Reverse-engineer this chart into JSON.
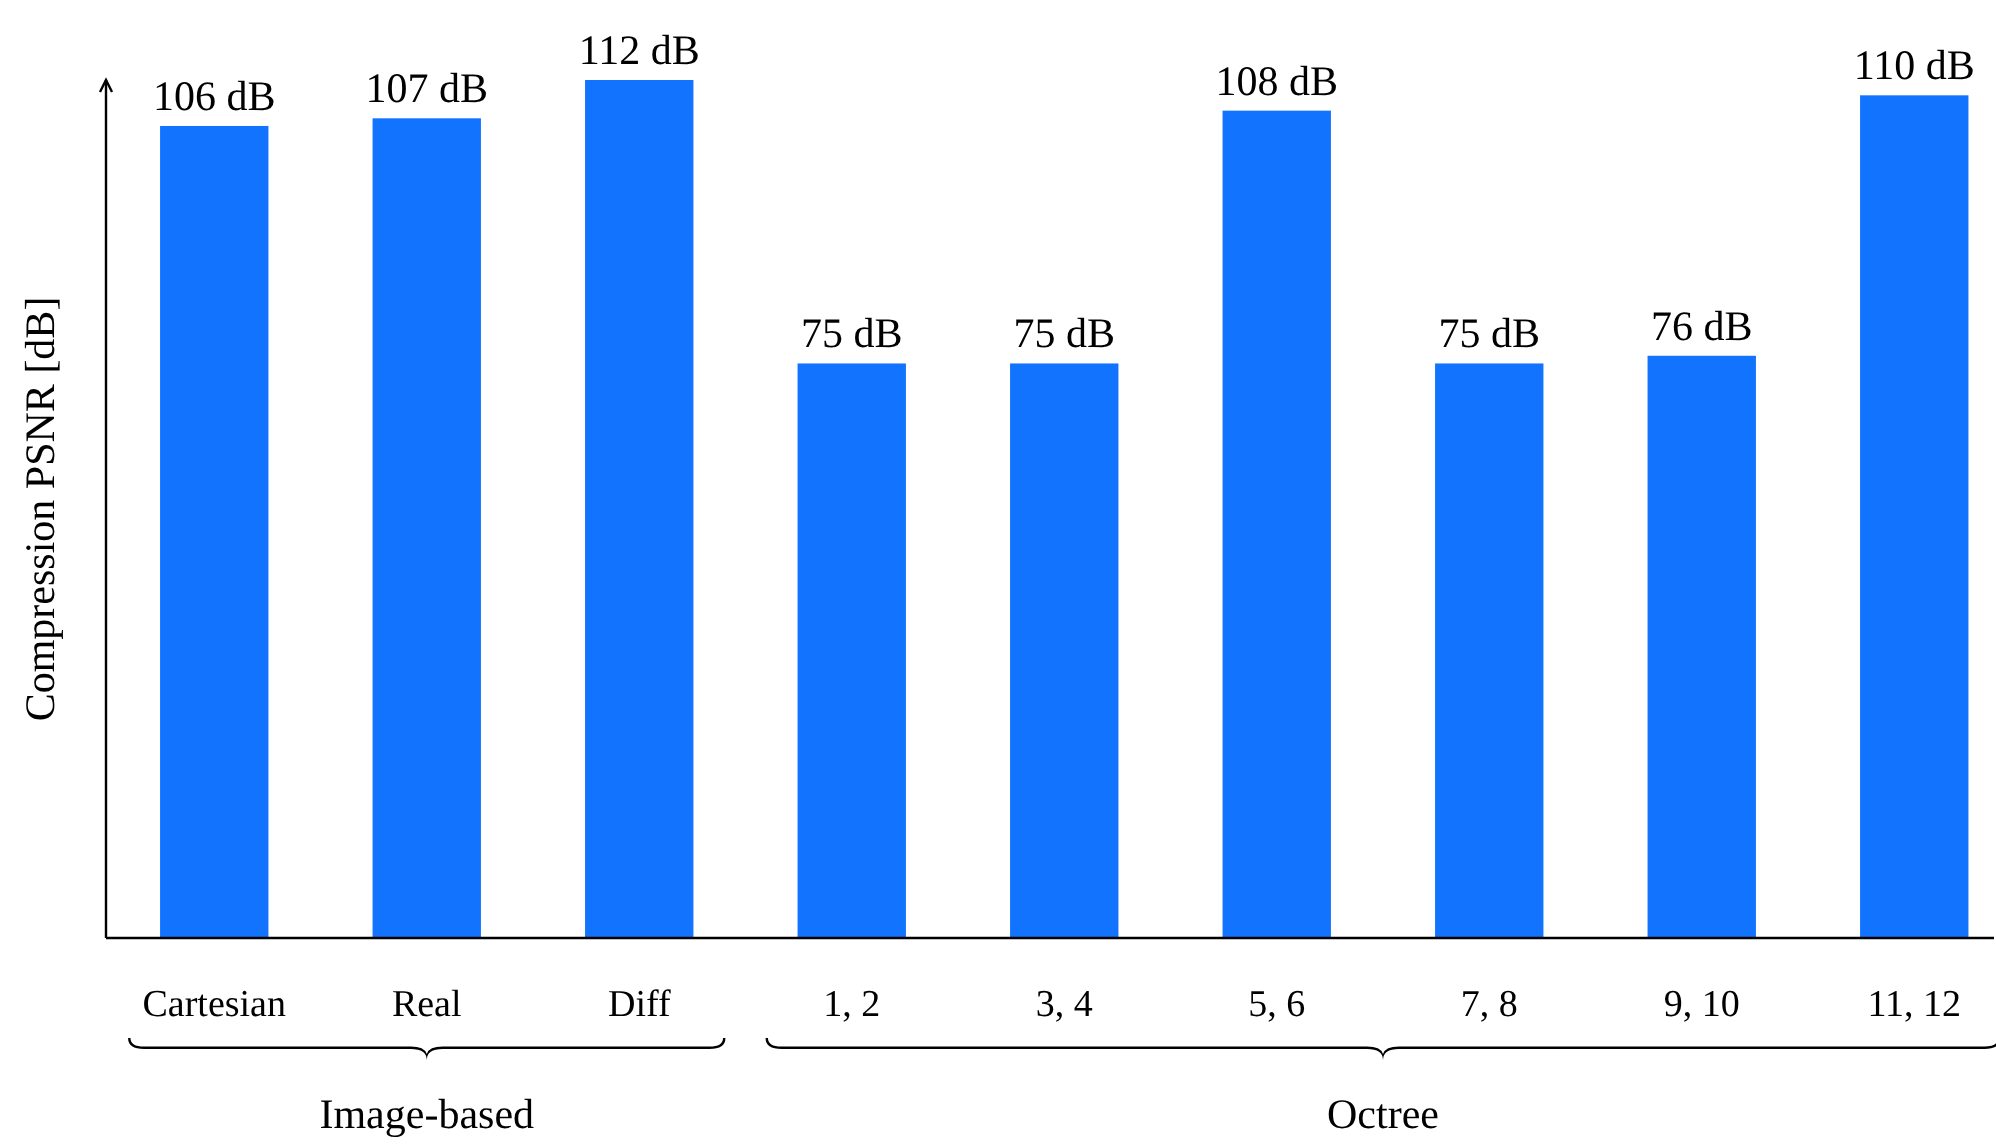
{
  "chart_data": {
    "type": "bar",
    "ylabel": "Compression PSNR [dB]",
    "categories": [
      "Cartesian",
      "Real",
      "Diff",
      "1, 2",
      "3, 4",
      "5, 6",
      "7, 8",
      "9, 10",
      "11, 12"
    ],
    "values": [
      106,
      107,
      112,
      75,
      75,
      108,
      75,
      76,
      110
    ],
    "value_labels": [
      "106 dB",
      "107 dB",
      "112 dB",
      "75 dB",
      "75 dB",
      "108 dB",
      "75 dB",
      "76 dB",
      "110 dB"
    ],
    "color": "#1273ff",
    "ylim": [
      0,
      112
    ],
    "tick_labels": "x",
    "annotations": [
      "Image-based",
      "Octree"
    ]
  }
}
